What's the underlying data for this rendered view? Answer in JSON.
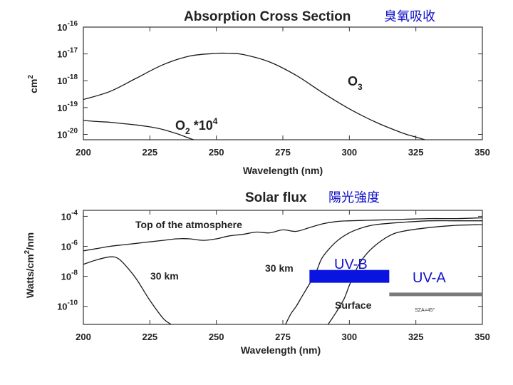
{
  "chart_data": [
    {
      "type": "line",
      "title": "Absorption Cross Section",
      "title_cjk": "臭氧吸收",
      "xlabel": "Wavelength (nm)",
      "ylabel": "cm2",
      "ylabel_base": "cm",
      "ylabel_sup": "2",
      "xlim": [
        200,
        350
      ],
      "ylim_log10": [
        -20.2,
        -16
      ],
      "log_y": true,
      "x_ticks": [
        200,
        225,
        250,
        275,
        300,
        325,
        350
      ],
      "y_ticks": [
        {
          "exp": -16,
          "base": "10",
          "sup": "-16"
        },
        {
          "exp": -17,
          "base": "10",
          "sup": "-17"
        },
        {
          "exp": -18,
          "base": "10",
          "sup": "-18"
        },
        {
          "exp": -19,
          "base": "10",
          "sup": "-19"
        },
        {
          "exp": -20,
          "base": "10",
          "sup": "-20"
        }
      ],
      "series": [
        {
          "name": "O3",
          "label_base": "O",
          "label_sub": "3",
          "x": [
            200,
            210,
            220,
            230,
            240,
            250,
            255,
            260,
            270,
            280,
            290,
            300,
            310,
            320,
            325,
            330
          ],
          "y_log10": [
            -18.7,
            -18.4,
            -17.9,
            -17.4,
            -17.08,
            -16.98,
            -16.98,
            -17.02,
            -17.3,
            -17.8,
            -18.45,
            -19.05,
            -19.55,
            -19.95,
            -20.1,
            -20.25
          ]
        },
        {
          "name": "O2 *10^4",
          "label_base": "O",
          "label_sub": "2",
          "label_rest": " *10",
          "label_sup": "4",
          "x": [
            200,
            205,
            210,
            215,
            220,
            225,
            230,
            235,
            240,
            243
          ],
          "y_log10": [
            -19.48,
            -19.52,
            -19.55,
            -19.6,
            -19.65,
            -19.72,
            -19.82,
            -19.97,
            -20.15,
            -20.25
          ]
        }
      ]
    },
    {
      "type": "line",
      "title": "Solar flux",
      "title_cjk": "陽光強度",
      "xlabel": "Wavelength (nm)",
      "ylabel": "Watts/cm2/nm",
      "ylabel_base": "Watts/cm",
      "ylabel_sup": "2",
      "ylabel_rest": "/nm",
      "xlim": [
        200,
        350
      ],
      "ylim_log10": [
        -11.2,
        -3.6
      ],
      "log_y": true,
      "x_ticks": [
        200,
        225,
        250,
        275,
        300,
        325,
        350
      ],
      "y_ticks": [
        {
          "exp": -4,
          "base": "10",
          "sup": "-4"
        },
        {
          "exp": -6,
          "base": "10",
          "sup": "-6"
        },
        {
          "exp": -8,
          "base": "10",
          "sup": "-8"
        },
        {
          "exp": -10,
          "base": "10",
          "sup": "-10"
        }
      ],
      "annotations": {
        "toa": "Top of the atmosphere",
        "km30_left": "30 km",
        "km30_mid": "30 km",
        "surface": "Surface",
        "sza": "SZA=45°",
        "uvb": "UV-B",
        "uva": "UV-A"
      },
      "bands": [
        {
          "name": "UV-B",
          "x": [
            285,
            315
          ],
          "y_log10": -8.0,
          "color": "#0a14e0"
        },
        {
          "name": "UV-A",
          "x": [
            315,
            350
          ],
          "y_log10": -9.2,
          "color": "#7a7a7a"
        }
      ],
      "series": [
        {
          "name": "Top of the atmosphere",
          "x": [
            200,
            205,
            210,
            215,
            220,
            225,
            230,
            235,
            240,
            245,
            250,
            255,
            260,
            265,
            270,
            275,
            280,
            285,
            290,
            295,
            300,
            310,
            320,
            330,
            340,
            350
          ],
          "y_log10": [
            -6.3,
            -6.15,
            -6.0,
            -5.9,
            -5.8,
            -5.7,
            -5.6,
            -5.5,
            -5.5,
            -5.6,
            -5.5,
            -5.3,
            -5.2,
            -5.05,
            -5.1,
            -4.9,
            -5.0,
            -4.75,
            -4.5,
            -4.35,
            -4.3,
            -4.25,
            -4.2,
            -4.15,
            -4.15,
            -4.1
          ]
        },
        {
          "name": "30 km (left)",
          "x": [
            200,
            205,
            210,
            213,
            216,
            220,
            225,
            230,
            233
          ],
          "y_log10": [
            -7.2,
            -6.9,
            -6.7,
            -6.8,
            -7.3,
            -8.2,
            -9.6,
            -10.8,
            -11.2
          ]
        },
        {
          "name": "30 km",
          "x": [
            276,
            278,
            280,
            282,
            284,
            286,
            288,
            290,
            295,
            300,
            305,
            310,
            320,
            330,
            340,
            350
          ],
          "y_log10": [
            -11.2,
            -10.5,
            -10.0,
            -9.4,
            -8.8,
            -8.2,
            -7.5,
            -6.7,
            -5.7,
            -5.1,
            -4.75,
            -4.55,
            -4.4,
            -4.3,
            -4.3,
            -4.3
          ]
        },
        {
          "name": "Surface",
          "x": [
            292,
            295,
            298,
            300,
            303,
            306,
            310,
            315,
            320,
            330,
            340,
            350
          ],
          "y_log10": [
            -11.2,
            -10.4,
            -9.5,
            -8.6,
            -7.4,
            -6.6,
            -5.9,
            -5.3,
            -5.0,
            -4.75,
            -4.6,
            -4.55
          ]
        }
      ]
    }
  ]
}
